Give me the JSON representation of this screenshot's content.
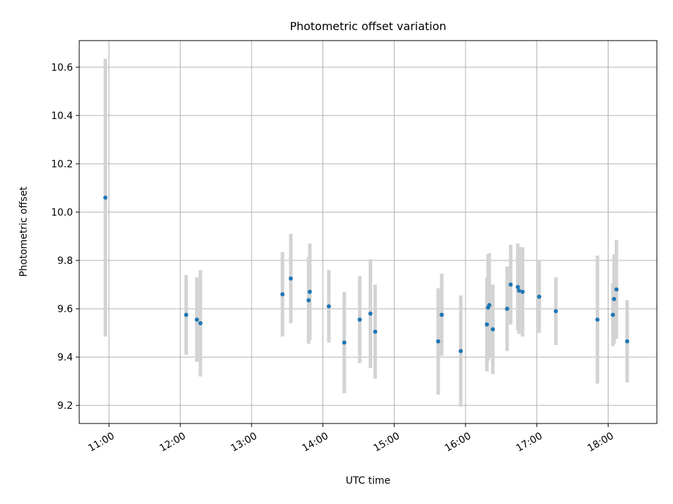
{
  "chart_data": {
    "type": "scatter",
    "title": "Photometric offset variation",
    "xlabel": "UTC time",
    "ylabel": "Photometric offset",
    "grid": true,
    "legend": "none",
    "xlim": [
      "10:35",
      "18:41"
    ],
    "ylim": [
      9.125,
      10.71
    ],
    "x_ticks": [
      "11:00",
      "12:00",
      "13:00",
      "14:00",
      "15:00",
      "16:00",
      "17:00",
      "18:00"
    ],
    "y_ticks": [
      9.2,
      9.4,
      9.6,
      9.8,
      10.0,
      10.2,
      10.4,
      10.6
    ],
    "y_tick_labels": [
      "9.2",
      "9.4",
      "9.6",
      "9.8",
      "10.0",
      "10.2",
      "10.4",
      "10.6"
    ],
    "colors": {
      "point": "#1f77b4",
      "errorbar": "#d3d3d3",
      "grid": "#b0b0b0"
    },
    "series": [
      {
        "x": [
          "10:57",
          "12:05",
          "12:14",
          "12:17",
          "13:26",
          "13:33",
          "13:48",
          "13:49",
          "14:05",
          "14:18",
          "14:31",
          "14:40",
          "14:44",
          "15:37",
          "15:40",
          "15:56",
          "16:18",
          "16:19",
          "16:20",
          "16:23",
          "16:35",
          "16:38",
          "16:44",
          "16:45",
          "16:48",
          "17:02",
          "17:16",
          "17:51",
          "18:04",
          "18:05",
          "18:07",
          "18:16"
        ],
        "y": [
          10.06,
          9.575,
          9.555,
          9.54,
          9.66,
          9.725,
          9.635,
          9.67,
          9.61,
          9.46,
          9.555,
          9.58,
          9.505,
          9.465,
          9.575,
          9.425,
          9.535,
          9.605,
          9.615,
          9.515,
          9.6,
          9.7,
          9.69,
          9.675,
          9.67,
          9.65,
          9.59,
          9.555,
          9.575,
          9.64,
          9.68,
          9.465
        ],
        "yerr": [
          0.575,
          0.165,
          0.175,
          0.22,
          0.175,
          0.185,
          0.18,
          0.2,
          0.15,
          0.21,
          0.18,
          0.225,
          0.195,
          0.22,
          0.17,
          0.23,
          0.195,
          0.22,
          0.215,
          0.185,
          0.175,
          0.165,
          0.18,
          0.18,
          0.185,
          0.15,
          0.14,
          0.265,
          0.13,
          0.185,
          0.205,
          0.17
        ]
      }
    ]
  }
}
